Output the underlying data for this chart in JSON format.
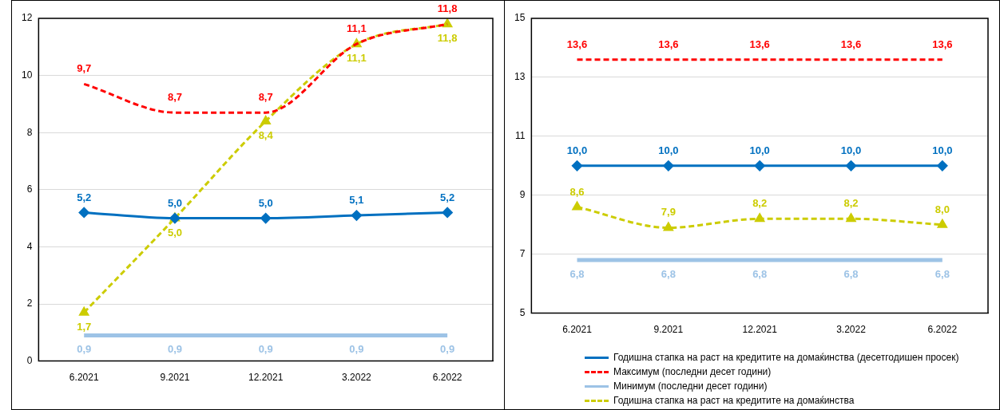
{
  "chart_data": [
    {
      "type": "line",
      "categories": [
        "6.2021",
        "9.2021",
        "12.2021",
        "3.2022",
        "6.2022"
      ],
      "ylim": [
        0,
        12
      ],
      "yticks": [
        0,
        2,
        4,
        6,
        8,
        10,
        12
      ],
      "grid": "y",
      "legend": false,
      "series": [
        {
          "color": "#0070c0",
          "marker": "diamond",
          "line_style": "solid",
          "values": [
            5.2,
            5.0,
            5.0,
            5.1,
            5.2
          ],
          "value_labels": [
            "5,2",
            "5,0",
            "5,0",
            "5,1",
            "5,2"
          ]
        },
        {
          "color": "#ff0000",
          "marker": "none",
          "line_style": "dashed",
          "values": [
            9.7,
            8.7,
            8.7,
            11.1,
            11.8
          ],
          "value_labels": [
            "9,7",
            "8,7",
            "8,7",
            "11,1",
            "11,8"
          ]
        },
        {
          "color": "#9dc3e6",
          "marker": "none",
          "line_style": "solid",
          "values": [
            0.9,
            0.9,
            0.9,
            0.9,
            0.9
          ],
          "value_labels": [
            "0,9",
            "0,9",
            "0,9",
            "0,9",
            "0,9"
          ]
        },
        {
          "color": "#cccc00",
          "marker": "triangle",
          "line_style": "dashed",
          "values": [
            1.7,
            5.0,
            8.4,
            11.1,
            11.8
          ],
          "value_labels": [
            "1,7",
            "5,0",
            "8,4",
            "11,1",
            "11,8"
          ]
        }
      ]
    },
    {
      "type": "line",
      "categories": [
        "6.2021",
        "9.2021",
        "12.2021",
        "3.2022",
        "6.2022"
      ],
      "ylim": [
        5,
        15
      ],
      "yticks": [
        5,
        7,
        9,
        11,
        13,
        15
      ],
      "grid": "y",
      "legend": "bottom",
      "series": [
        {
          "name": "Годишна стапка на раст на кредитите на домаќинства (десетгодишен просек)",
          "color": "#0070c0",
          "marker": "diamond",
          "line_style": "solid",
          "values": [
            10.0,
            10.0,
            10.0,
            10.0,
            10.0
          ],
          "value_labels": [
            "10,0",
            "10,0",
            "10,0",
            "10,0",
            "10,0"
          ]
        },
        {
          "name": "Максимум (последни десет години)",
          "color": "#ff0000",
          "marker": "none",
          "line_style": "dashed",
          "values": [
            13.6,
            13.6,
            13.6,
            13.6,
            13.6
          ],
          "value_labels": [
            "13,6",
            "13,6",
            "13,6",
            "13,6",
            "13,6"
          ]
        },
        {
          "name": "Минимум (последни десет години)",
          "color": "#9dc3e6",
          "marker": "none",
          "line_style": "solid",
          "values": [
            6.8,
            6.8,
            6.8,
            6.8,
            6.8
          ],
          "value_labels": [
            "6,8",
            "6,8",
            "6,8",
            "6,8",
            "6,8"
          ]
        },
        {
          "name": "Годишна стапка на раст на кредитите на домаќинства",
          "color": "#cccc00",
          "marker": "triangle",
          "line_style": "dashed",
          "values": [
            8.6,
            7.9,
            8.2,
            8.2,
            8.0
          ],
          "value_labels": [
            "8,6",
            "7,9",
            "8,2",
            "8,2",
            "8,0"
          ]
        }
      ]
    }
  ]
}
